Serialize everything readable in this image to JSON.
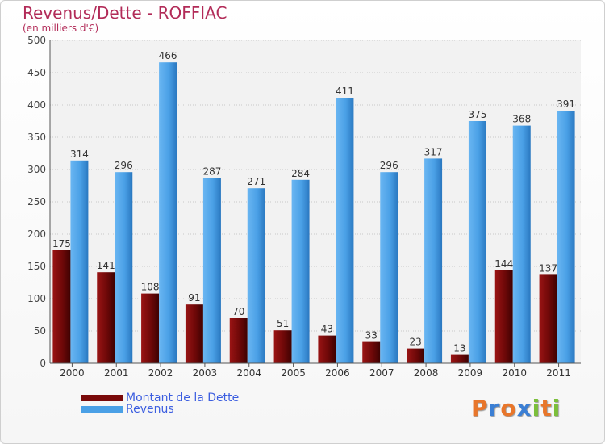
{
  "header": {
    "title": "Revenus/Dette - ROFFIAC",
    "subtitle": "(en milliers d'€)"
  },
  "legend": {
    "items": [
      {
        "label": "Montant de la Dette",
        "color": "#7a0a0a"
      },
      {
        "label": "Revenus",
        "color": "#4aa0e6"
      }
    ]
  },
  "logo": {
    "text": "Proxiti",
    "colors": [
      "#e8762b",
      "#3b7fd4",
      "#e8762b",
      "#3b7fd4",
      "#7bbf3a",
      "#e8762b",
      "#7bbf3a"
    ]
  },
  "chart_data": {
    "type": "bar",
    "title": "Revenus/Dette - ROFFIAC",
    "subtitle": "(en milliers d'€)",
    "categories": [
      "2000",
      "2001",
      "2002",
      "2003",
      "2004",
      "2005",
      "2006",
      "2007",
      "2008",
      "2009",
      "2010",
      "2011"
    ],
    "series": [
      {
        "name": "Montant de la Dette",
        "color": "#7a0a0a",
        "values": [
          175,
          141,
          108,
          91,
          70,
          51,
          43,
          33,
          23,
          13,
          144,
          137
        ]
      },
      {
        "name": "Revenus",
        "color": "#4aa0e6",
        "values": [
          314,
          296,
          466,
          287,
          271,
          284,
          411,
          296,
          317,
          375,
          368,
          391
        ]
      }
    ],
    "ylim": [
      0,
      500
    ],
    "yticks": [
      0,
      50,
      100,
      150,
      200,
      250,
      300,
      350,
      400,
      450,
      500
    ],
    "grid": true,
    "legend_position": "bottom-left"
  }
}
